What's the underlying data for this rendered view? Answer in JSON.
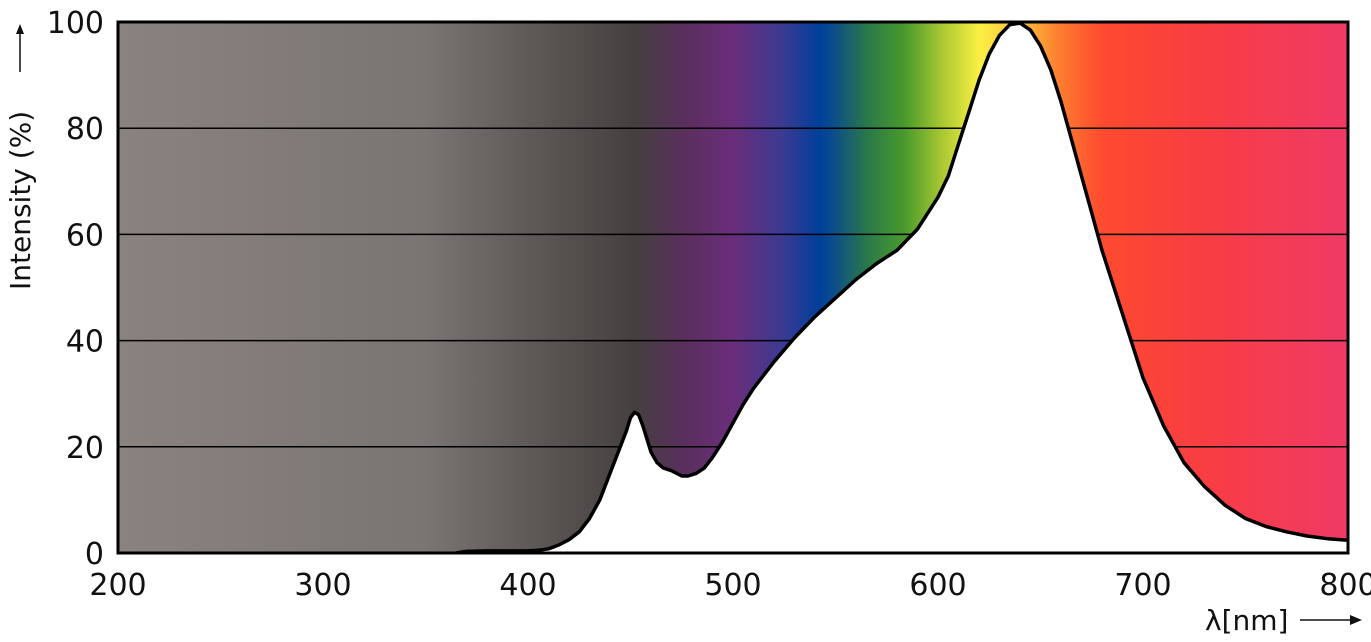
{
  "chart_data": {
    "type": "area",
    "title": "",
    "xlabel": "λ[nm]",
    "ylabel": "Intensity (%)",
    "xlim": [
      200,
      800
    ],
    "ylim": [
      0,
      100
    ],
    "x_ticks": [
      "200",
      "300",
      "400",
      "500",
      "600",
      "700",
      "800"
    ],
    "y_ticks": [
      "0",
      "20",
      "40",
      "60",
      "80",
      "100"
    ],
    "grid": true,
    "background": "visible spectrum color gradient",
    "series": [
      {
        "x": [
          365,
          370,
          380,
          390,
          400,
          405,
          410,
          415,
          420,
          425,
          430,
          435,
          440,
          445,
          448,
          450,
          452,
          454,
          456,
          458,
          460,
          463,
          466,
          470,
          475,
          478,
          482,
          486,
          490,
          495,
          500,
          505,
          510,
          520,
          530,
          540,
          550,
          560,
          570,
          580,
          590,
          600,
          605,
          610,
          615,
          620,
          625,
          630,
          635,
          640,
          645,
          650,
          655,
          660,
          665,
          670,
          675,
          680,
          690,
          700,
          710,
          720,
          730,
          740,
          750,
          760,
          770,
          780,
          790,
          800
        ],
        "values": [
          0,
          0.3,
          0.4,
          0.4,
          0.4,
          0.5,
          0.8,
          1.5,
          2.5,
          4,
          6.5,
          10,
          15,
          20,
          23,
          25.5,
          26.5,
          26,
          24,
          21.5,
          19,
          17,
          16,
          15.5,
          14.5,
          14.5,
          15,
          16,
          18,
          21,
          24.5,
          28,
          31,
          36,
          40.5,
          44.5,
          48,
          51.5,
          54.5,
          57,
          61,
          67,
          71,
          77,
          83,
          89,
          94,
          97.5,
          99.5,
          99.8,
          98.5,
          95.5,
          91,
          85,
          78,
          71,
          64,
          57,
          45,
          33,
          24,
          17,
          12.5,
          9,
          6.5,
          5,
          4,
          3.2,
          2.7,
          2.4
        ]
      }
    ]
  }
}
